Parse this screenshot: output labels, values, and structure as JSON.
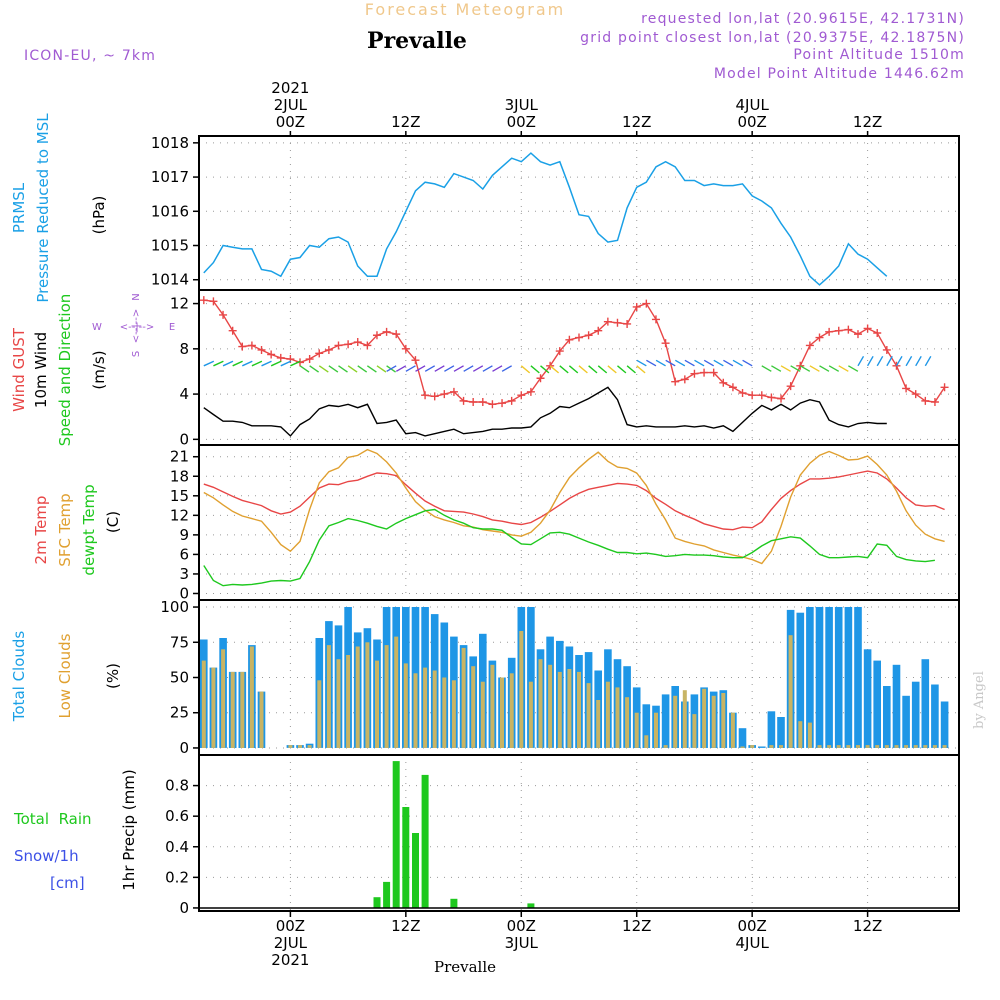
{
  "header": {
    "forecast_title": "Forecast Meteogram",
    "location": "Prevalle",
    "model": "ICON-EU, ~ 7km",
    "requested": "requested lon,lat (20.9615E, 42.1731N)",
    "grid_point": "grid point closest lon,lat (20.9375E, 42.1875N)",
    "point_altitude": "Point Altitude 1510m",
    "model_altitude": "Model Point Altitude 1446.62m",
    "watermark": "by Angel",
    "footer_location": "Prevalle"
  },
  "time_axis": {
    "top_year": "2021",
    "top_labels": [
      {
        "h": 0,
        "lines": [
          "2JUL",
          "00Z"
        ]
      },
      {
        "h": 12,
        "lines": [
          "12Z"
        ]
      },
      {
        "h": 24,
        "lines": [
          "3JUL",
          "00Z"
        ]
      },
      {
        "h": 36,
        "lines": [
          "12Z"
        ]
      },
      {
        "h": 48,
        "lines": [
          "4JUL",
          "00Z"
        ]
      },
      {
        "h": 60,
        "lines": [
          "12Z"
        ]
      }
    ],
    "bottom_labels": [
      {
        "h": 0,
        "lines": [
          "00Z",
          "2JUL",
          "2021"
        ]
      },
      {
        "h": 12,
        "lines": [
          "12Z"
        ]
      },
      {
        "h": 24,
        "lines": [
          "00Z",
          "3JUL"
        ]
      },
      {
        "h": 36,
        "lines": [
          "12Z"
        ]
      },
      {
        "h": 48,
        "lines": [
          "00Z",
          "4JUL"
        ]
      },
      {
        "h": 60,
        "lines": [
          "12Z"
        ]
      }
    ]
  },
  "panel_labels": {
    "pressure": {
      "l1": "PRMSL",
      "l2": "Pressure Reduced to MSL",
      "unit": "(hPa)"
    },
    "wind": {
      "l1": "Wind GUST",
      "l2": "10m Wind",
      "l3": "Speed and Direction",
      "unit": "(m/s)",
      "compass_n": "N",
      "compass_s": "S",
      "compass_w": "W",
      "compass_e": "E"
    },
    "temp": {
      "l1": "2m Temp",
      "l2": "SFC Temp",
      "l3": "dewpt Temp",
      "unit": "(C)"
    },
    "clouds": {
      "l1": "Total Clouds",
      "l2": "Low Clouds",
      "unit": "(%)"
    },
    "precip": {
      "total": "Total  Rain",
      "snow": "Snow/1h",
      "snow_unit": "[cm]",
      "axis": "1hr Precip (mm)"
    }
  },
  "colors": {
    "pressure": "#1aa0e6",
    "gust": "#e84646",
    "wind": "#000000",
    "temp2m": "#e84646",
    "sfc": "#e0a030",
    "dewpt": "#1ec81e",
    "total_clouds": "#1e96e6",
    "low_clouds": "#c8b464",
    "rain": "#1ec81e",
    "snow": "#3c50e6",
    "purple": "#a05ad2",
    "title_orange": "#f0c88c"
  },
  "chart_data": [
    {
      "type": "line",
      "name": "PRMSL Pressure Reduced to MSL",
      "ylabel": "(hPa)",
      "x_start": -9,
      "x_step": 1,
      "ylim": [
        1013.7,
        1018.2
      ],
      "yticks": [
        1014,
        1015,
        1016,
        1017,
        1018
      ],
      "series": [
        {
          "name": "PRMSL",
          "values": [
            1014.2,
            1014.5,
            1015.0,
            1014.95,
            1014.9,
            1014.9,
            1014.3,
            1014.25,
            1014.1,
            1014.6,
            1014.65,
            1015.0,
            1014.95,
            1015.2,
            1015.25,
            1015.1,
            1014.4,
            1014.1,
            1014.1,
            1014.9,
            1015.4,
            1016.0,
            1016.6,
            1016.85,
            1016.8,
            1016.7,
            1017.1,
            1017.0,
            1016.9,
            1016.65,
            1017.05,
            1017.3,
            1017.55,
            1017.45,
            1017.7,
            1017.45,
            1017.35,
            1017.45,
            1016.7,
            1015.9,
            1015.85,
            1015.35,
            1015.1,
            1015.15,
            1016.1,
            1016.7,
            1016.85,
            1017.3,
            1017.45,
            1017.3,
            1016.9,
            1016.9,
            1016.75,
            1016.8,
            1016.75,
            1016.75,
            1016.8,
            1016.45,
            1016.3,
            1016.1,
            1015.65,
            1015.25,
            1014.7,
            1014.1,
            1013.85,
            1014.1,
            1014.4,
            1015.05,
            1014.75,
            1014.6,
            1014.35,
            1014.1
          ]
        }
      ]
    },
    {
      "type": "line",
      "name": "Wind GUST / 10m Wind Speed and Direction",
      "ylabel": "(m/s)",
      "x_start": -9,
      "x_step": 1,
      "ylim": [
        -0.5,
        13.2
      ],
      "yticks": [
        0,
        4,
        8,
        12
      ],
      "series": [
        {
          "name": "Wind GUST",
          "values": [
            12.3,
            12.2,
            11.0,
            9.6,
            8.2,
            8.3,
            7.9,
            7.5,
            7.2,
            7.1,
            6.8,
            7.1,
            7.6,
            7.9,
            8.3,
            8.4,
            8.6,
            8.3,
            9.2,
            9.5,
            9.3,
            8.0,
            7.0,
            3.9,
            3.8,
            4.0,
            4.2,
            3.4,
            3.3,
            3.3,
            3.1,
            3.2,
            3.4,
            3.9,
            4.2,
            5.4,
            6.5,
            7.8,
            8.8,
            9.0,
            9.2,
            9.6,
            10.4,
            10.3,
            10.2,
            11.7,
            12.0,
            10.6,
            8.5,
            5.1,
            5.3,
            5.8,
            5.9,
            5.9,
            5.0,
            4.6,
            4.1,
            3.9,
            3.9,
            3.7,
            3.6,
            4.7,
            6.5,
            8.3,
            9.0,
            9.5,
            9.6,
            9.7,
            9.3,
            9.8,
            9.4,
            7.9,
            6.5,
            4.5,
            4.0,
            3.4,
            3.3,
            4.6
          ]
        },
        {
          "name": "10m Wind",
          "values": [
            2.8,
            2.2,
            1.6,
            1.6,
            1.5,
            1.2,
            1.2,
            1.2,
            1.1,
            0.3,
            1.3,
            1.8,
            2.7,
            3.0,
            2.9,
            3.1,
            2.8,
            3.1,
            1.4,
            1.5,
            1.7,
            0.5,
            0.6,
            0.3,
            0.5,
            0.7,
            0.9,
            0.5,
            0.6,
            0.7,
            0.9,
            0.9,
            1.0,
            1.0,
            1.1,
            1.9,
            2.3,
            2.9,
            2.8,
            3.2,
            3.6,
            4.1,
            4.6,
            3.5,
            1.3,
            1.1,
            1.2,
            1.1,
            1.1,
            1.1,
            1.2,
            1.1,
            1.2,
            1.0,
            1.2,
            0.7,
            1.5,
            2.3,
            3.0,
            2.6,
            3.1,
            2.6,
            3.2,
            3.5,
            3.3,
            1.7,
            1.3,
            1.1,
            1.4,
            1.5,
            1.4,
            1.4
          ]
        }
      ]
    },
    {
      "type": "line",
      "name": "2m Temp / SFC Temp / dewpt Temp",
      "ylabel": "(C)",
      "x_start": -9,
      "x_step": 1,
      "ylim": [
        -1.0,
        22.8
      ],
      "yticks": [
        0,
        3,
        6,
        9,
        12,
        15,
        18,
        21
      ],
      "series": [
        {
          "name": "2m Temp",
          "values": [
            16.8,
            16.3,
            15.6,
            14.9,
            14.3,
            13.9,
            13.5,
            12.7,
            12.2,
            12.5,
            13.4,
            14.8,
            16.2,
            16.8,
            16.7,
            17.2,
            17.4,
            18.0,
            18.5,
            18.4,
            18.1,
            16.7,
            15.4,
            14.2,
            13.4,
            12.7,
            12.6,
            12.5,
            12.2,
            11.8,
            11.3,
            11.1,
            10.8,
            10.6,
            10.9,
            11.7,
            12.6,
            13.6,
            14.6,
            15.4,
            16.0,
            16.3,
            16.6,
            16.9,
            16.8,
            16.6,
            15.8,
            14.6,
            13.7,
            12.7,
            12.0,
            11.4,
            10.7,
            10.3,
            9.9,
            9.8,
            10.2,
            10.1,
            11.0,
            12.9,
            14.6,
            15.8,
            16.8,
            17.6,
            17.6,
            17.7,
            17.9,
            18.2,
            18.5,
            18.8,
            18.5,
            17.6,
            16.2,
            14.7,
            13.6,
            13.4,
            13.5,
            12.9
          ]
        },
        {
          "name": "SFC Temp",
          "values": [
            15.5,
            14.7,
            13.6,
            12.6,
            11.9,
            11.5,
            11.1,
            9.4,
            7.5,
            6.5,
            8.0,
            12.9,
            17.0,
            18.7,
            19.3,
            20.9,
            21.2,
            22.1,
            21.5,
            20.2,
            18.5,
            16.2,
            14.1,
            12.8,
            11.8,
            11.3,
            10.9,
            10.4,
            10.2,
            9.8,
            9.6,
            9.4,
            9.0,
            8.8,
            9.4,
            10.8,
            12.8,
            15.5,
            17.8,
            19.3,
            20.6,
            21.7,
            20.3,
            19.4,
            19.2,
            18.5,
            16.6,
            13.7,
            11.3,
            8.5,
            8.0,
            7.6,
            7.3,
            6.7,
            6.3,
            5.9,
            5.6,
            5.2,
            4.6,
            6.5,
            10.3,
            14.8,
            18.2,
            20.0,
            21.2,
            21.8,
            21.2,
            20.5,
            20.6,
            21.1,
            19.8,
            18.2,
            15.7,
            12.7,
            10.5,
            9.1,
            8.4,
            8.0
          ]
        },
        {
          "name": "dewpt Temp",
          "values": [
            4.3,
            2.0,
            1.2,
            1.4,
            1.3,
            1.4,
            1.6,
            1.9,
            2.0,
            1.9,
            2.3,
            4.9,
            8.2,
            10.4,
            10.9,
            11.5,
            11.2,
            10.8,
            10.3,
            9.9,
            10.8,
            11.5,
            12.1,
            12.7,
            12.9,
            12.0,
            11.3,
            10.8,
            10.1,
            9.9,
            9.9,
            9.7,
            8.6,
            7.6,
            7.5,
            8.4,
            9.3,
            9.4,
            9.1,
            8.5,
            7.9,
            7.4,
            6.8,
            6.3,
            6.3,
            6.1,
            6.2,
            6.0,
            5.7,
            5.8,
            6.0,
            5.9,
            5.9,
            5.8,
            5.6,
            5.5,
            5.5,
            6.3,
            7.3,
            8.1,
            8.4,
            8.7,
            8.5,
            7.3,
            6.0,
            5.5,
            5.5,
            5.6,
            5.7,
            5.5,
            7.6,
            7.4,
            5.7,
            5.2,
            5.0,
            4.9,
            5.1
          ]
        }
      ]
    },
    {
      "type": "bar",
      "name": "Total Clouds / Low Clouds",
      "ylabel": "(%)",
      "x_start": -9,
      "x_step": 1,
      "ylim": [
        -5,
        105
      ],
      "yticks": [
        0,
        25,
        50,
        75,
        100
      ],
      "series": [
        {
          "name": "Total Clouds",
          "values": [
            77,
            57,
            78,
            54,
            54,
            73,
            40,
            0,
            0,
            2,
            2,
            3,
            78,
            90,
            87,
            100,
            82,
            85,
            77,
            100,
            100,
            100,
            100,
            100,
            95,
            89,
            79,
            73,
            65,
            81,
            62,
            50,
            64,
            100,
            100,
            70,
            79,
            76,
            72,
            66,
            68,
            55,
            70,
            63,
            58,
            43,
            31,
            30,
            38,
            44,
            33,
            38,
            43,
            40,
            41,
            25,
            14,
            2,
            1,
            26,
            22,
            98,
            96,
            100,
            100,
            100,
            100,
            100,
            100,
            70,
            62,
            44,
            59,
            37,
            47,
            63,
            45,
            33
          ]
        },
        {
          "name": "Low Clouds",
          "values": [
            62,
            57,
            70,
            54,
            54,
            72,
            40,
            0,
            0,
            2,
            2,
            2,
            48,
            73,
            63,
            66,
            72,
            75,
            62,
            73,
            79,
            60,
            53,
            57,
            55,
            50,
            48,
            71,
            58,
            47,
            59,
            50,
            53,
            83,
            47,
            63,
            59,
            54,
            56,
            54,
            46,
            34,
            47,
            43,
            36,
            25,
            9,
            25,
            2,
            37,
            41,
            24,
            42,
            37,
            39,
            25,
            1,
            2,
            0,
            2,
            2,
            80,
            19,
            18,
            2,
            2,
            2,
            2,
            2,
            2,
            2,
            2,
            2,
            2,
            2,
            2,
            2,
            2
          ]
        }
      ]
    },
    {
      "type": "bar",
      "name": "Total Rain / Snow",
      "ylabel": "1hr Precip (mm)",
      "x_start": -9,
      "x_step": 1,
      "ylim": [
        -0.02,
        1.0
      ],
      "yticks": [
        0,
        0.2,
        0.4,
        0.6,
        0.8
      ],
      "series": [
        {
          "name": "Total Rain",
          "values": [
            0,
            0,
            0,
            0,
            0,
            0,
            0,
            0,
            0,
            0,
            0,
            0,
            0,
            0,
            0,
            0,
            0,
            0,
            0.07,
            0.17,
            0.96,
            0.66,
            0.49,
            0.87,
            0,
            0,
            0.06,
            0,
            0,
            0,
            0,
            0,
            0,
            0,
            0.03,
            0,
            0,
            0,
            0,
            0,
            0,
            0,
            0,
            0,
            0,
            0,
            0,
            0,
            0,
            0,
            0,
            0,
            0,
            0,
            0,
            0,
            0,
            0,
            0,
            0,
            0,
            0,
            0,
            0,
            0,
            0,
            0,
            0,
            0,
            0,
            0,
            0,
            0,
            0,
            0,
            0,
            0,
            0
          ]
        }
      ]
    }
  ]
}
